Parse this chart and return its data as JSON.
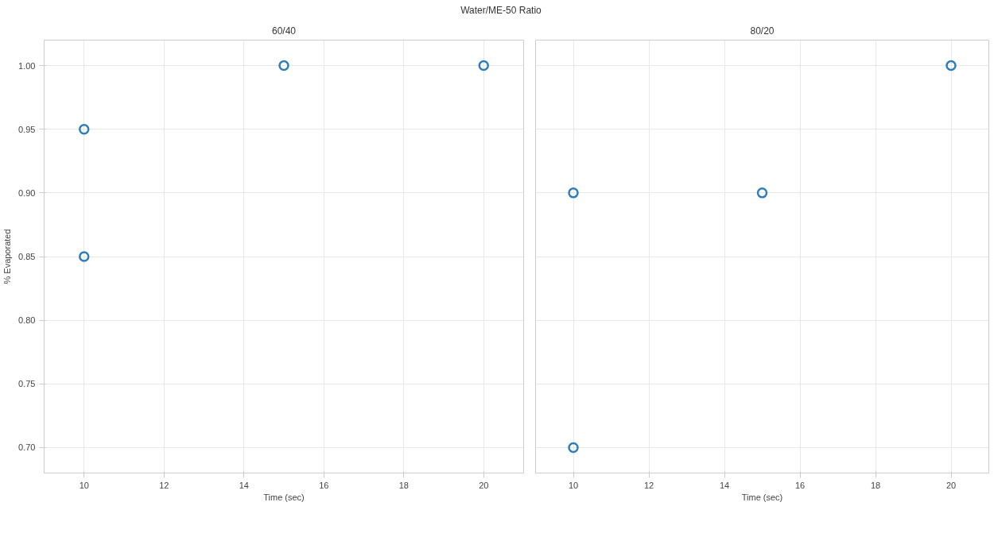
{
  "chart_data": [
    {
      "type": "scatter",
      "title": "60/40",
      "annotations": [
        "Water/ME-50 Ratio"
      ],
      "xlabel": "Time (sec)",
      "ylabel": "% Evaporated",
      "x": [
        10,
        10,
        15,
        20
      ],
      "series": [
        {
          "color": "#2f7ebc",
          "values": [
            0.95,
            0.85,
            1.0,
            1.0
          ]
        }
      ],
      "xlim": [
        9,
        21
      ],
      "xticks": [
        10,
        12,
        14,
        16,
        18,
        20
      ],
      "ylim": [
        0.68,
        1.02
      ],
      "yticks": [
        {
          "value": 0.7,
          "label": "0.70"
        },
        {
          "value": 0.75,
          "label": "0.75"
        },
        {
          "value": 0.8,
          "label": "0.80"
        },
        {
          "value": 0.85,
          "label": "0.85"
        },
        {
          "value": 0.9,
          "label": "0.90"
        },
        {
          "value": 0.95,
          "label": "0.95"
        },
        {
          "value": 1.0,
          "label": "1.00"
        }
      ],
      "grid": true,
      "marker": "circle"
    },
    {
      "type": "scatter",
      "title": "80/20",
      "xlabel": "Time (sec)",
      "x": [
        10,
        10,
        15,
        20
      ],
      "series": [
        {
          "color": "#2f7ebc",
          "values": [
            0.9,
            0.7,
            0.9,
            1.0
          ]
        }
      ],
      "xlim": [
        9,
        21
      ],
      "xticks": [
        10,
        12,
        14,
        16,
        18,
        20
      ],
      "ylim": [
        0.68,
        1.02
      ],
      "yticks": [
        {
          "value": 0.7,
          "label": null
        },
        {
          "value": 0.75,
          "label": null
        },
        {
          "value": 0.8,
          "label": null
        },
        {
          "value": 0.85,
          "label": null
        },
        {
          "value": 0.9,
          "label": null
        },
        {
          "value": 0.95,
          "label": null
        },
        {
          "value": 1.0,
          "label": null
        }
      ],
      "tick_labels": "x",
      "grid": true,
      "marker": "circle"
    }
  ]
}
